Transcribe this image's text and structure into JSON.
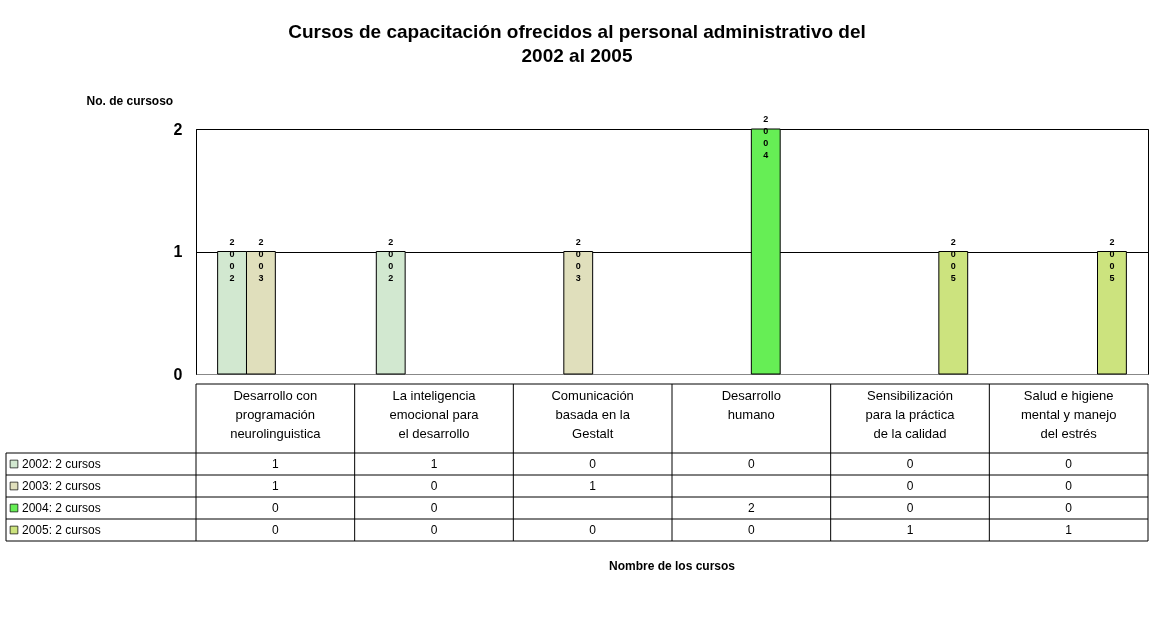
{
  "chart_data": {
    "type": "bar",
    "title": "Cursos de capacitación ofrecidos al personal administrativo del 2002 al 2005",
    "ylabel": "No. de cursoso",
    "categories": [
      "Desarrollo con programación neurolinguistica",
      "La inteligencia emocional para el desarrollo",
      "Comunicación basada en la Gestalt",
      "Desarrollo humano",
      "Sensibilización para la práctica de la calidad",
      "Salud e higiene mental y manejo del estrés"
    ],
    "series": [
      {
        "name": "2002: 2 cursos",
        "color": "#d2e8d0",
        "values": [
          1,
          1,
          0,
          0,
          0,
          0
        ]
      },
      {
        "name": "2003: 2 cursos",
        "color": "#e0dfbc",
        "values": [
          1,
          0,
          1,
          null,
          0,
          0
        ]
      },
      {
        "name": "2004: 2 cursos",
        "color": "#66ee55",
        "values": [
          0,
          0,
          null,
          2,
          0,
          0
        ]
      },
      {
        "name": "2005: 2 cursos",
        "color": "#cce37e",
        "values": [
          0,
          0,
          0,
          0,
          1,
          1
        ]
      }
    ],
    "annotations": [
      "2002",
      "2003",
      "2002",
      "2003",
      "2004",
      "2005",
      "2005",
      "Nombre de los cursos"
    ],
    "ylim": [
      0,
      2
    ],
    "yticks": [
      0,
      1,
      2
    ],
    "grid": "y",
    "legend": "bottom",
    "data_labels": true
  }
}
